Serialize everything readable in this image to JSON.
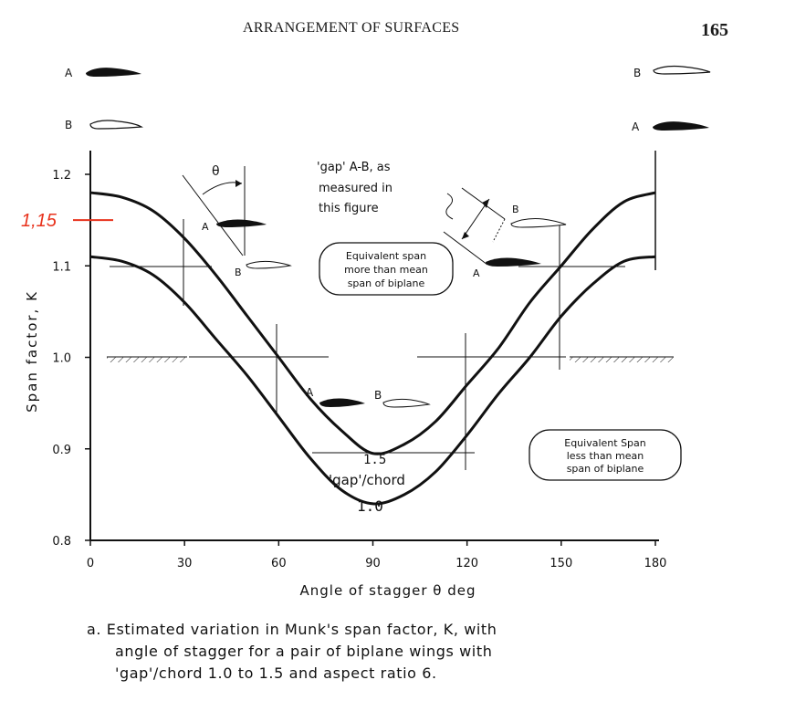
{
  "page": {
    "header_title": "ARRANGEMENT OF SURFACES",
    "page_number": "165"
  },
  "chart_data": {
    "type": "line",
    "title": "",
    "xlabel": "Angle of stagger θ deg",
    "ylabel": "Span factor, K",
    "xlim": [
      0,
      180
    ],
    "ylim": [
      0.8,
      1.2
    ],
    "x_ticks": [
      "0",
      "30",
      "60",
      "90",
      "120",
      "150",
      "180"
    ],
    "y_ticks": [
      "0.8",
      "0.9",
      "1.0",
      "1.1",
      "1.2"
    ],
    "grid": false,
    "series": [
      {
        "name": "1.5",
        "x": [
          0,
          10,
          20,
          30,
          40,
          50,
          60,
          70,
          80,
          90,
          100,
          110,
          120,
          130,
          140,
          150,
          160,
          170,
          180
        ],
        "values": [
          1.18,
          1.175,
          1.16,
          1.13,
          1.09,
          1.045,
          1.0,
          0.955,
          0.92,
          0.895,
          0.905,
          0.93,
          0.97,
          1.01,
          1.06,
          1.1,
          1.14,
          1.17,
          1.18
        ]
      },
      {
        "name": "1.0",
        "x": [
          0,
          10,
          20,
          30,
          40,
          50,
          60,
          70,
          80,
          90,
          100,
          110,
          120,
          130,
          140,
          150,
          160,
          170,
          180
        ],
        "values": [
          1.11,
          1.105,
          1.09,
          1.06,
          1.02,
          0.98,
          0.935,
          0.89,
          0.855,
          0.84,
          0.85,
          0.875,
          0.915,
          0.96,
          1.0,
          1.045,
          1.08,
          1.105,
          1.11
        ]
      }
    ],
    "series_group_label": "'gap'/chord",
    "annotation_gap": "'gap' A-B, as measured in this figure",
    "annotation_gap_lines": [
      "'gap' A-B, as",
      "measured in",
      "this figure"
    ],
    "annotation_more": [
      "Equivalent span",
      "more than mean",
      "span of biplane"
    ],
    "annotation_less": [
      "Equivalent Span",
      "less than mean",
      "span of biplane"
    ],
    "theta_symbol": "θ",
    "wing_labels": {
      "a": "A",
      "b": "B"
    },
    "red_marker": {
      "label": "1,15",
      "value": 1.15,
      "color": "#e8321c"
    },
    "caption_lines": [
      "a. Estimated variation in Munk's span factor, K, with",
      "angle of stagger for a pair of biplane wings with",
      "'gap'/chord 1.0 to 1.5 and aspect ratio 6."
    ]
  }
}
